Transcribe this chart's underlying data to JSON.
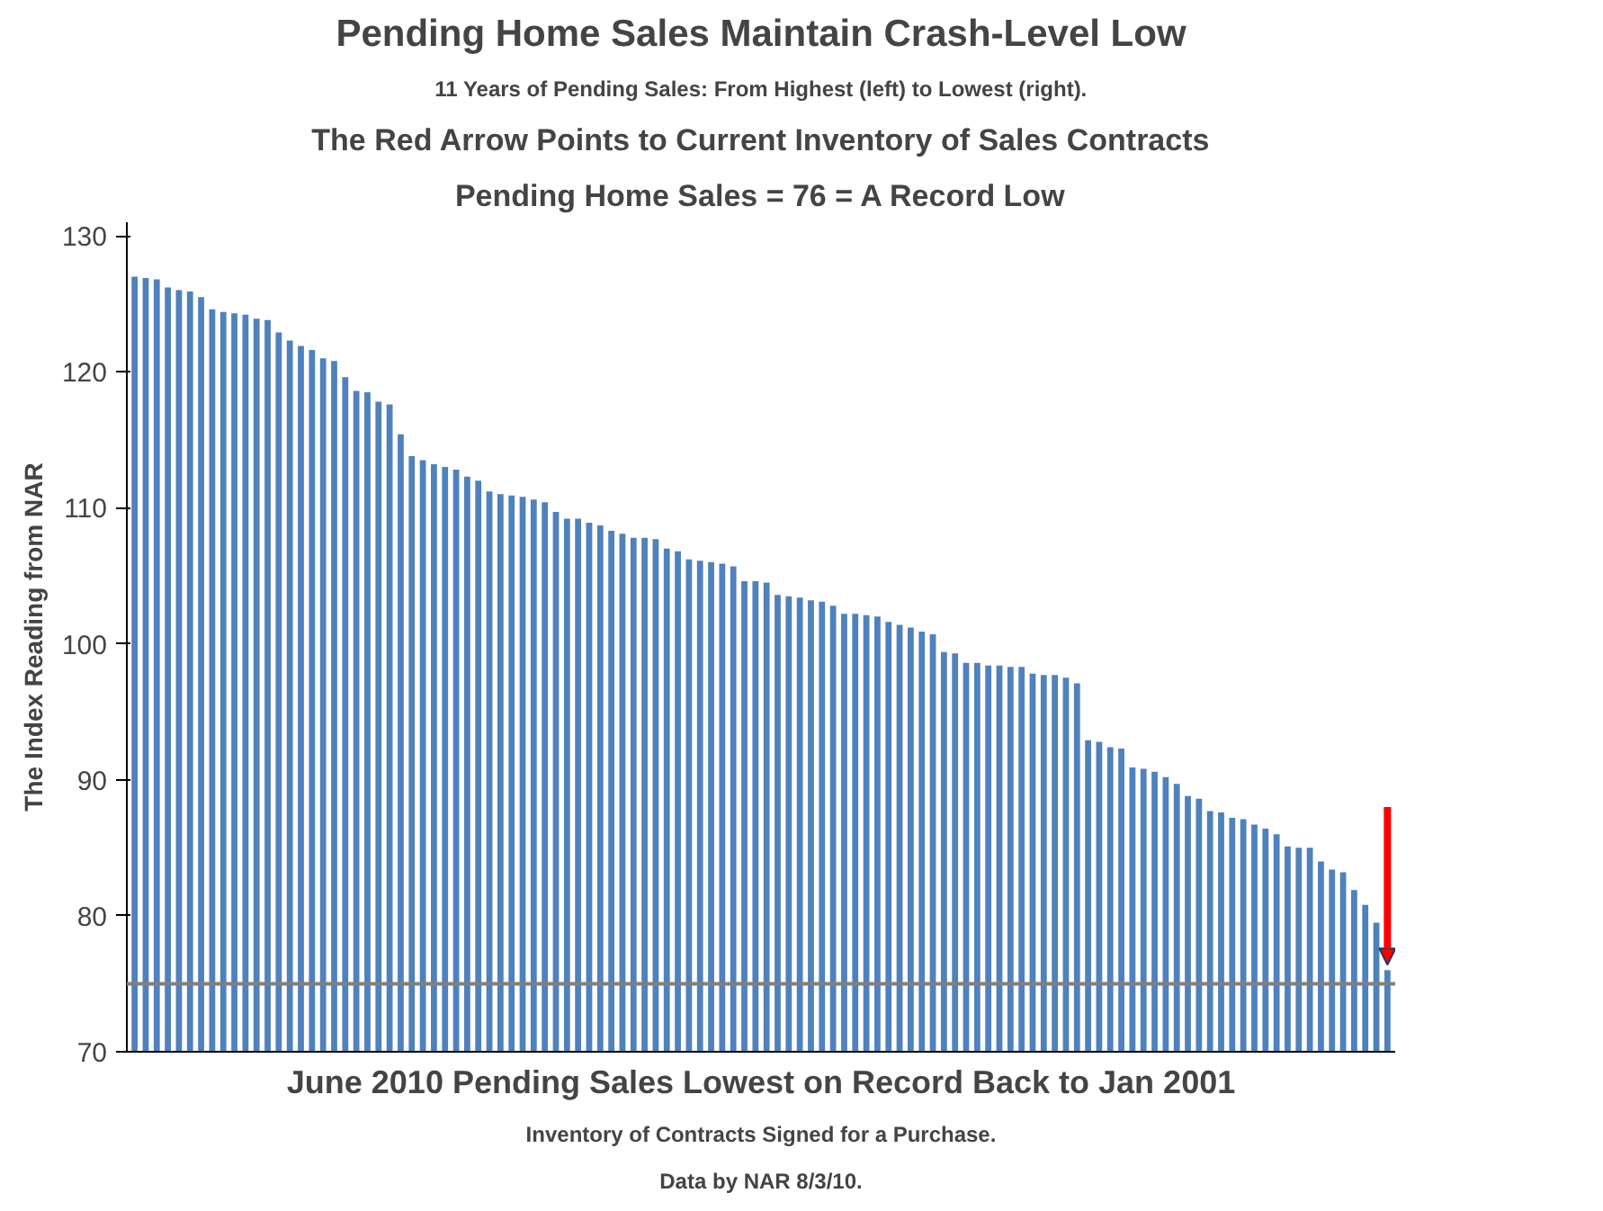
{
  "chart_data": {
    "type": "bar",
    "title": "Pending Home Sales Maintain Crash-Level Low",
    "subtitle": "11 Years of Pending Sales: From Highest (left) to Lowest (right).",
    "annotations": [
      "The Red Arrow Points to Current Inventory of Sales Contracts",
      "Pending Home Sales = 76 = A Record Low",
      "Inventory of Contracts Signed for a Purchase.",
      "Data by NAR 8/3/10."
    ],
    "xlabel": "June 2010 Pending Sales Lowest on Record Back to Jan 2001",
    "ylabel": "The Index Reading from NAR",
    "categories": [
      null,
      null,
      null,
      null,
      null,
      null,
      null,
      null,
      null,
      null,
      null,
      null,
      null,
      null,
      null,
      null,
      null,
      null,
      null,
      null,
      null,
      null,
      null,
      null,
      null,
      null,
      null,
      null,
      null,
      null,
      null,
      null,
      null,
      null,
      null,
      null,
      null,
      null,
      null,
      null,
      null,
      null,
      null,
      null,
      null,
      null,
      null,
      null,
      null,
      null,
      null,
      null,
      null,
      null,
      null,
      null,
      null,
      null,
      null,
      null,
      null,
      null,
      null,
      null,
      null,
      null,
      null,
      null,
      null,
      null,
      null,
      null,
      null,
      null,
      null,
      null,
      null,
      null,
      null,
      null,
      null,
      null,
      null,
      null,
      null,
      null,
      null,
      null,
      null,
      null,
      null,
      null,
      null,
      null,
      null,
      null,
      null,
      null,
      null,
      null,
      null,
      null,
      null,
      null,
      null,
      null,
      null,
      null,
      null,
      null,
      null,
      null,
      null,
      null
    ],
    "values": [
      127.0,
      126.9,
      126.8,
      126.2,
      126.0,
      125.9,
      125.5,
      124.6,
      124.4,
      124.3,
      124.2,
      123.9,
      123.8,
      122.9,
      122.3,
      121.9,
      121.6,
      121.0,
      120.8,
      119.6,
      118.6,
      118.5,
      117.8,
      117.6,
      115.4,
      113.8,
      113.5,
      113.2,
      113.0,
      112.8,
      112.3,
      112.0,
      111.2,
      111.0,
      110.9,
      110.8,
      110.6,
      110.4,
      109.7,
      109.2,
      109.2,
      108.9,
      108.7,
      108.3,
      108.1,
      107.8,
      107.8,
      107.7,
      107.0,
      106.8,
      106.2,
      106.1,
      106.0,
      105.9,
      105.7,
      104.6,
      104.6,
      104.5,
      103.6,
      103.5,
      103.4,
      103.2,
      103.1,
      102.8,
      102.2,
      102.2,
      102.1,
      102.0,
      101.6,
      101.4,
      101.2,
      100.9,
      100.7,
      99.4,
      99.3,
      98.6,
      98.6,
      98.4,
      98.4,
      98.3,
      98.3,
      97.8,
      97.7,
      97.7,
      97.5,
      97.1,
      92.9,
      92.8,
      92.4,
      92.3,
      90.9,
      90.8,
      90.6,
      90.2,
      89.7,
      88.8,
      88.6,
      87.7,
      87.6,
      87.2,
      87.1,
      86.7,
      86.4,
      86.0,
      85.1,
      85.0,
      85.0,
      84.0,
      83.4,
      83.2,
      81.9,
      80.8,
      79.5,
      76
    ],
    "color": "#4f81bd",
    "ylim": [
      70,
      131
    ],
    "yticks": [
      70,
      80,
      90,
      100,
      110,
      120,
      130
    ],
    "ref_lines": [
      {
        "axis": "y",
        "value": 75,
        "color": "#808080"
      }
    ],
    "grid": false,
    "tick_labels": "y"
  }
}
